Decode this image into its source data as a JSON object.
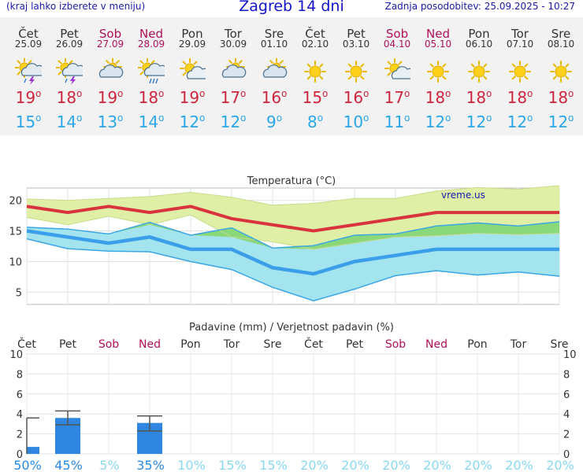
{
  "header": {
    "left_note": "(kraj lahko izberete v meniju)",
    "title": "Zagreb 14 dni",
    "updated": "Zadnja posodobitev: 25.09.2025 - 10:27"
  },
  "days": [
    {
      "name": "Čet",
      "date": "25.09",
      "weekend": false,
      "icon": "thunderstorm-icon",
      "tmax": "19",
      "tmin": "15"
    },
    {
      "name": "Pet",
      "date": "26.09",
      "weekend": false,
      "icon": "thunderstorm-icon",
      "tmax": "18",
      "tmin": "14"
    },
    {
      "name": "Sob",
      "date": "27.09",
      "weekend": true,
      "icon": "partly-cloudy-icon",
      "tmax": "19",
      "tmin": "13"
    },
    {
      "name": "Ned",
      "date": "28.09",
      "weekend": true,
      "icon": "sun-rain-icon",
      "tmax": "18",
      "tmin": "14"
    },
    {
      "name": "Pon",
      "date": "29.09",
      "weekend": false,
      "icon": "sun-cloud-icon",
      "tmax": "19",
      "tmin": "12"
    },
    {
      "name": "Tor",
      "date": "30.09",
      "weekend": false,
      "icon": "partly-cloudy-icon",
      "tmax": "17",
      "tmin": "12"
    },
    {
      "name": "Sre",
      "date": "01.10",
      "weekend": false,
      "icon": "partly-cloudy-icon",
      "tmax": "16",
      "tmin": "9"
    },
    {
      "name": "Čet",
      "date": "02.10",
      "weekend": false,
      "icon": "sun-icon",
      "tmax": "15",
      "tmin": "8"
    },
    {
      "name": "Pet",
      "date": "03.10",
      "weekend": false,
      "icon": "sun-icon",
      "tmax": "16",
      "tmin": "10"
    },
    {
      "name": "Sob",
      "date": "04.10",
      "weekend": true,
      "icon": "sun-cloud-icon",
      "tmax": "17",
      "tmin": "11"
    },
    {
      "name": "Ned",
      "date": "05.10",
      "weekend": true,
      "icon": "sun-icon",
      "tmax": "18",
      "tmin": "12"
    },
    {
      "name": "Pon",
      "date": "06.10",
      "weekend": false,
      "icon": "sun-icon",
      "tmax": "18",
      "tmin": "12"
    },
    {
      "name": "Tor",
      "date": "07.10",
      "weekend": false,
      "icon": "sun-icon",
      "tmax": "18",
      "tmin": "12"
    },
    {
      "name": "Sre",
      "date": "08.10",
      "weekend": false,
      "icon": "sun-icon",
      "tmax": "18",
      "tmin": "12"
    }
  ],
  "colors": {
    "max_line": "#d9343e",
    "min_line": "#3a9fe8",
    "max_band": "#dff0a6",
    "min_band": "#a4e4ee",
    "overlap_band": "#8ad87a",
    "bars": "#2e86e0",
    "weekend": "#b0105a"
  },
  "chart_data": [
    {
      "type": "line",
      "title": "Temperatura (°C)",
      "watermark": "vreme.us",
      "ylim": [
        3,
        22
      ],
      "yticks": [
        5,
        10,
        15,
        20
      ],
      "x": [
        "25.09",
        "26.09",
        "27.09",
        "28.09",
        "29.09",
        "30.09",
        "01.10",
        "02.10",
        "03.10",
        "04.10",
        "05.10",
        "06.10",
        "07.10",
        "08.10"
      ],
      "series": [
        {
          "role": "max",
          "values": [
            19,
            18,
            19,
            18,
            19,
            17,
            16,
            15,
            16,
            17,
            18,
            18,
            18,
            18
          ]
        },
        {
          "role": "min",
          "values": [
            15,
            14,
            13,
            14,
            12,
            12,
            9,
            8,
            10,
            11,
            12,
            12,
            12,
            12
          ]
        },
        {
          "role": "max-upper",
          "values": [
            20.2,
            20,
            20.3,
            20.6,
            21.3,
            20.5,
            19.2,
            19.5,
            20.3,
            20.3,
            21.5,
            22.1,
            21.8,
            22.4
          ]
        },
        {
          "role": "max-lower",
          "values": [
            17.2,
            16,
            17.4,
            16,
            17.6,
            14,
            13.2,
            12,
            13,
            14,
            14.2,
            14.6,
            14.4,
            14.6
          ]
        },
        {
          "role": "min-upper",
          "values": [
            15.6,
            15.3,
            14.5,
            16.4,
            14.3,
            15.5,
            12.2,
            12.6,
            14.3,
            14.5,
            15.8,
            16.3,
            15.8,
            16.5
          ]
        },
        {
          "role": "min-lower",
          "values": [
            13.7,
            12.1,
            11.7,
            11.6,
            10,
            8.7,
            5.8,
            3.6,
            5.5,
            7.7,
            8.5,
            7.8,
            8.3,
            7.6
          ]
        }
      ]
    },
    {
      "type": "bar",
      "title": "Padavine (mm) / Verjetnost padavin (%)",
      "ylim": [
        0,
        10
      ],
      "yticks": [
        0,
        2,
        4,
        6,
        8,
        10
      ],
      "categories": [
        "Čet",
        "Pet",
        "Sob",
        "Ned",
        "Pon",
        "Tor",
        "Sre",
        "Čet",
        "Pet",
        "Sob",
        "Ned",
        "Pon",
        "Tor",
        "Sre"
      ],
      "weekend": [
        false,
        false,
        true,
        true,
        false,
        false,
        false,
        false,
        false,
        true,
        true,
        false,
        false,
        false
      ],
      "values": [
        0.7,
        3.6,
        0,
        3.1,
        0,
        0,
        0,
        0,
        0,
        0,
        0,
        0,
        0,
        0
      ],
      "error_high": [
        3.6,
        4.3,
        0,
        3.8,
        0,
        0,
        0,
        0,
        0,
        0,
        0,
        0,
        0,
        0
      ],
      "error_low": [
        0,
        2.9,
        0,
        2.3,
        0,
        0,
        0,
        0,
        0,
        0,
        0,
        0,
        0,
        0
      ],
      "probability": [
        "50%",
        "45%",
        "5%",
        "35%",
        "10%",
        "15%",
        "15%",
        "20%",
        "20%",
        "20%",
        "20%",
        "20%",
        "20%",
        "20%"
      ],
      "probability_color": [
        "#2a8ae0",
        "#2a8ae0",
        "#8ad8f0",
        "#2a8ae0",
        "#8ad8f0",
        "#8ad8f0",
        "#8ad8f0",
        "#8ad8f0",
        "#8ad8f0",
        "#8ad8f0",
        "#8ad8f0",
        "#8ad8f0",
        "#8ad8f0",
        "#8ad8f0"
      ]
    }
  ]
}
